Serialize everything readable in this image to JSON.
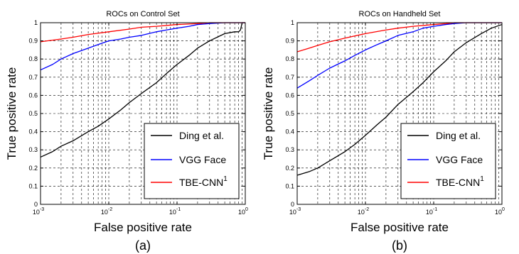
{
  "chart_data": [
    {
      "type": "line",
      "title": "ROCs on Control Set",
      "xlabel": "False positive rate",
      "ylabel": "True positive rate",
      "caption": "(a)",
      "x_scale": "log",
      "xlim": [
        0.001,
        1
      ],
      "ylim": [
        0,
        1
      ],
      "grid": true,
      "legend_position": "bottom-right",
      "x_tick_labels": [
        {
          "base": "10",
          "exp": "-3"
        },
        {
          "base": "10",
          "exp": "-2"
        },
        {
          "base": "10",
          "exp": "-1"
        },
        {
          "base": "10",
          "exp": "0"
        }
      ],
      "y_tick_labels": [
        "0",
        "0.1",
        "0.2",
        "0.3",
        "0.4",
        "0.5",
        "0.6",
        "0.7",
        "0.8",
        "0.9",
        "1"
      ],
      "series": [
        {
          "name": "Ding et al.",
          "name_sup": "",
          "color": "#000000",
          "x": [
            0.001,
            0.0015,
            0.002,
            0.003,
            0.005,
            0.007,
            0.01,
            0.015,
            0.02,
            0.03,
            0.05,
            0.07,
            0.1,
            0.15,
            0.2,
            0.3,
            0.5,
            0.7,
            0.8,
            0.85,
            0.9,
            1.0
          ],
          "y": [
            0.26,
            0.29,
            0.32,
            0.35,
            0.4,
            0.43,
            0.47,
            0.52,
            0.56,
            0.61,
            0.67,
            0.72,
            0.77,
            0.82,
            0.86,
            0.9,
            0.94,
            0.95,
            0.95,
            0.96,
            1.0,
            1.0
          ]
        },
        {
          "name": "VGG Face",
          "name_sup": "",
          "color": "#0000ff",
          "x": [
            0.001,
            0.0015,
            0.002,
            0.003,
            0.005,
            0.007,
            0.01,
            0.015,
            0.02,
            0.03,
            0.05,
            0.07,
            0.1,
            0.15,
            0.2,
            0.3,
            0.5,
            1.0
          ],
          "y": [
            0.74,
            0.77,
            0.8,
            0.83,
            0.86,
            0.88,
            0.9,
            0.91,
            0.92,
            0.93,
            0.95,
            0.96,
            0.97,
            0.98,
            0.99,
            0.995,
            1.0,
            1.0
          ]
        },
        {
          "name": "TBE-CNN",
          "name_sup": "1",
          "color": "#ff0000",
          "x": [
            0.001,
            0.002,
            0.003,
            0.005,
            0.01,
            0.02,
            0.03,
            0.05,
            0.1,
            0.2,
            0.3,
            0.5,
            1.0
          ],
          "y": [
            0.895,
            0.91,
            0.92,
            0.935,
            0.95,
            0.965,
            0.975,
            0.98,
            0.99,
            0.995,
            1.0,
            1.0,
            1.0
          ]
        }
      ]
    },
    {
      "type": "line",
      "title": "ROCs on Handheld Set",
      "xlabel": "False positive rate",
      "ylabel": "True positive rate",
      "caption": "(b)",
      "x_scale": "log",
      "xlim": [
        0.001,
        1
      ],
      "ylim": [
        0,
        1
      ],
      "grid": true,
      "legend_position": "bottom-right",
      "x_tick_labels": [
        {
          "base": "10",
          "exp": "-3"
        },
        {
          "base": "10",
          "exp": "-2"
        },
        {
          "base": "10",
          "exp": "-1"
        },
        {
          "base": "10",
          "exp": "0"
        }
      ],
      "y_tick_labels": [
        "0",
        "0.1",
        "0.2",
        "0.3",
        "0.4",
        "0.5",
        "0.6",
        "0.7",
        "0.8",
        "0.9",
        "1"
      ],
      "series": [
        {
          "name": "Ding et al.",
          "name_sup": "",
          "color": "#000000",
          "x": [
            0.001,
            0.0015,
            0.002,
            0.003,
            0.005,
            0.007,
            0.01,
            0.015,
            0.02,
            0.03,
            0.05,
            0.07,
            0.1,
            0.15,
            0.2,
            0.3,
            0.5,
            0.7,
            1.0
          ],
          "y": [
            0.16,
            0.18,
            0.2,
            0.24,
            0.29,
            0.33,
            0.38,
            0.44,
            0.48,
            0.55,
            0.62,
            0.67,
            0.73,
            0.79,
            0.84,
            0.89,
            0.94,
            0.97,
            0.99
          ]
        },
        {
          "name": "VGG Face",
          "name_sup": "",
          "color": "#0000ff",
          "x": [
            0.001,
            0.0015,
            0.002,
            0.003,
            0.005,
            0.007,
            0.01,
            0.015,
            0.02,
            0.03,
            0.05,
            0.07,
            0.1,
            0.15,
            0.2,
            0.3,
            1.0
          ],
          "y": [
            0.64,
            0.68,
            0.71,
            0.75,
            0.79,
            0.82,
            0.85,
            0.88,
            0.9,
            0.93,
            0.95,
            0.97,
            0.98,
            0.99,
            0.995,
            1.0,
            1.0
          ]
        },
        {
          "name": "TBE-CNN",
          "name_sup": "1",
          "color": "#ff0000",
          "x": [
            0.001,
            0.0015,
            0.002,
            0.003,
            0.005,
            0.01,
            0.02,
            0.03,
            0.05,
            0.1,
            0.15,
            0.2,
            1.0
          ],
          "y": [
            0.84,
            0.86,
            0.875,
            0.895,
            0.915,
            0.94,
            0.96,
            0.97,
            0.98,
            0.99,
            0.995,
            1.0,
            1.0
          ]
        }
      ]
    }
  ]
}
